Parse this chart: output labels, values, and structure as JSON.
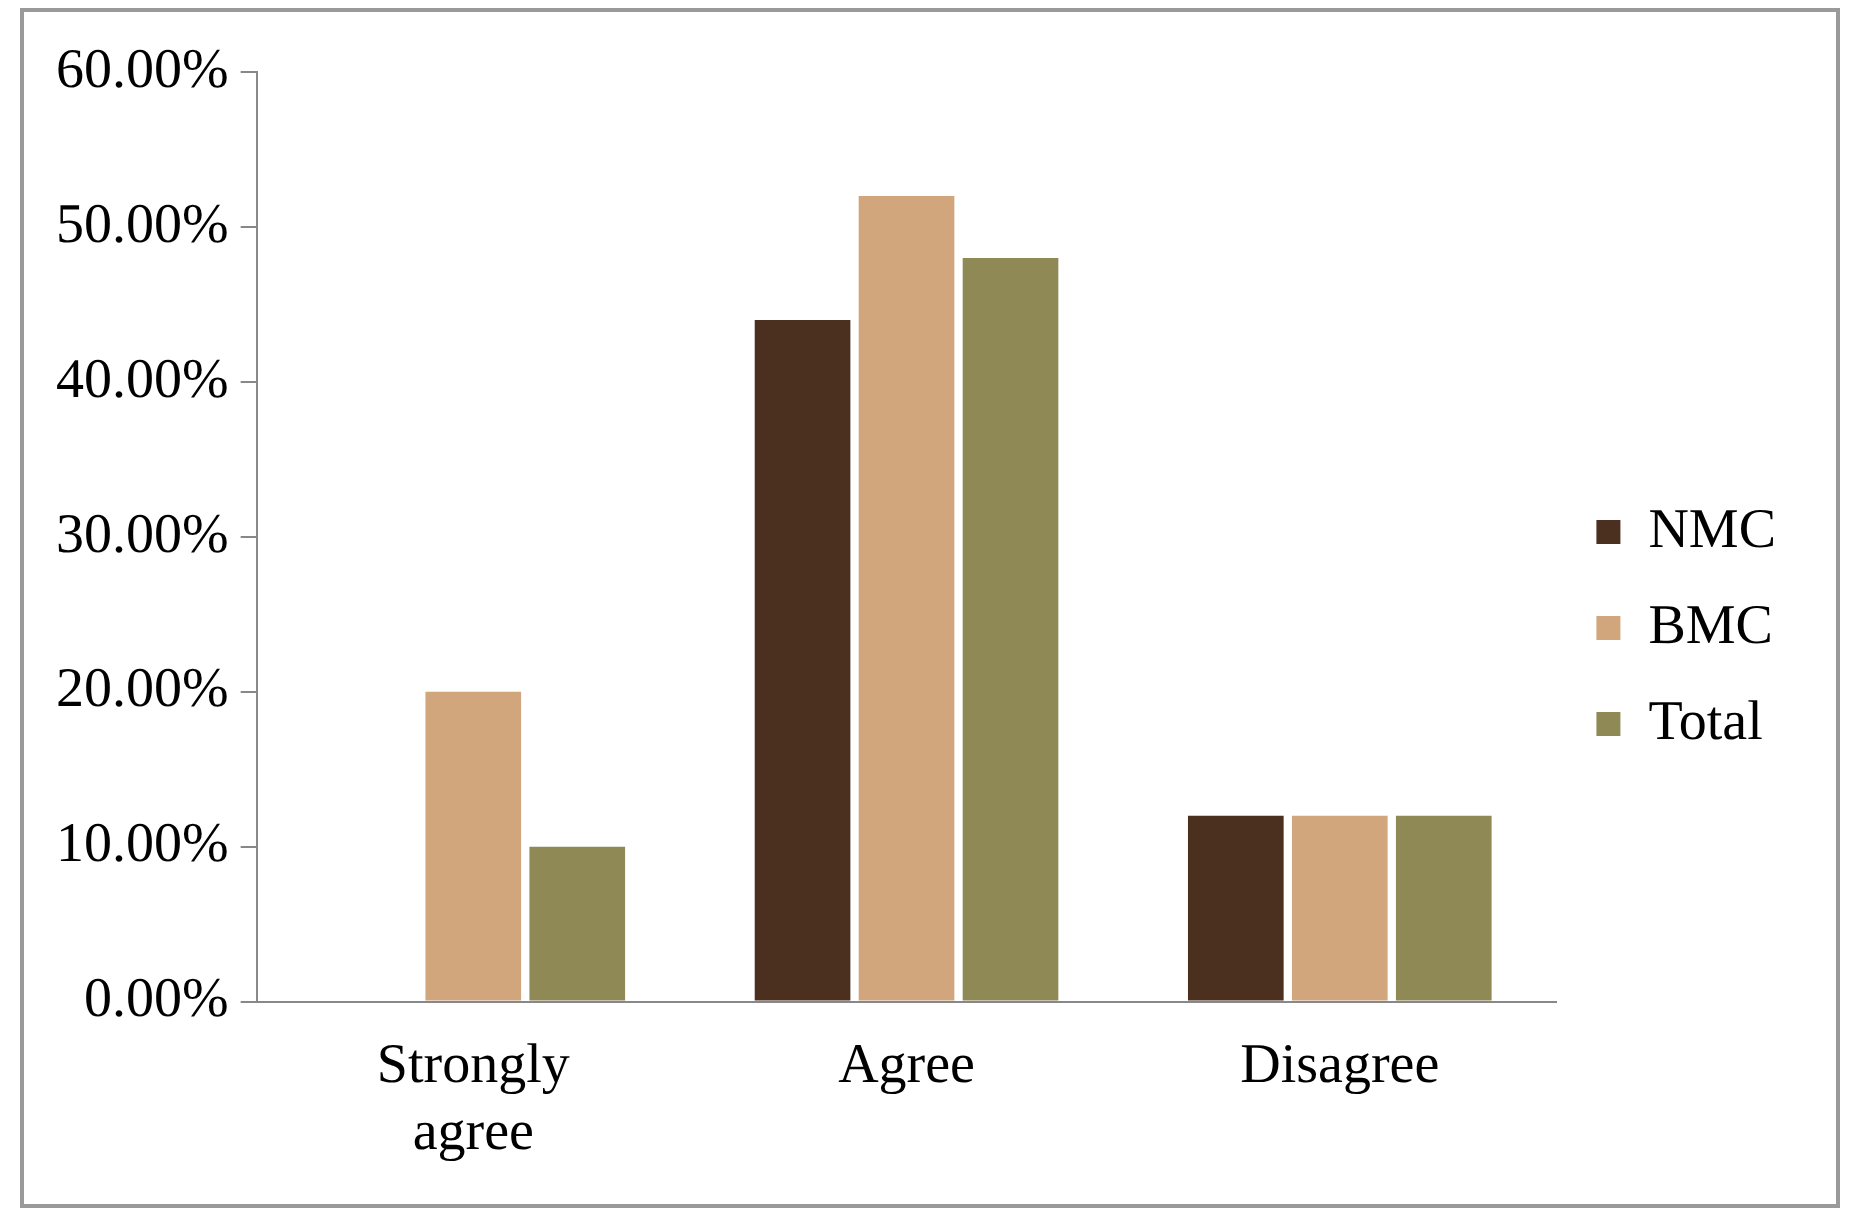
{
  "chart_data": {
    "type": "bar",
    "categories": [
      "Strongly agree",
      "Agree",
      "Disagree"
    ],
    "series": [
      {
        "name": "NMC",
        "color": "#4b2f1f",
        "values": [
          0,
          44,
          12
        ]
      },
      {
        "name": "BMC",
        "color": "#d1a67c",
        "values": [
          20,
          52,
          12
        ]
      },
      {
        "name": "Total",
        "color": "#8f8a55",
        "values": [
          10,
          48,
          12
        ]
      }
    ],
    "ylim": [
      0,
      60
    ],
    "yticks": [
      {
        "value": 0,
        "label": "0.00%"
      },
      {
        "value": 10,
        "label": "10.00%"
      },
      {
        "value": 20,
        "label": "20.00%"
      },
      {
        "value": 30,
        "label": "30.00%"
      },
      {
        "value": 40,
        "label": "40.00%"
      },
      {
        "value": 50,
        "label": "50.00%"
      },
      {
        "value": 60,
        "label": "60.00%"
      }
    ],
    "grid": false,
    "legend": "right"
  }
}
